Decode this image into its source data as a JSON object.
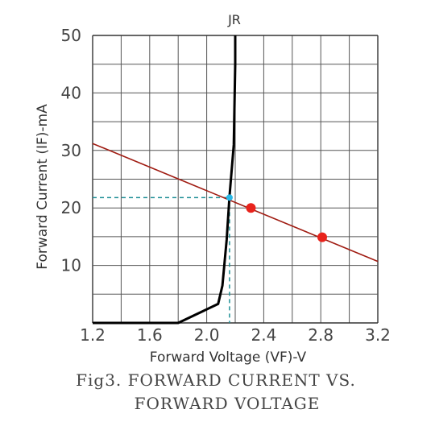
{
  "chart_data": {
    "type": "line",
    "title": "",
    "curve_label": "JR",
    "xlabel": "Forward Voltage (VF)-V",
    "ylabel": "Forward Current (IF)-mA",
    "xlim": [
      1.2,
      3.2
    ],
    "ylim": [
      0,
      50
    ],
    "x_ticks": [
      1.2,
      1.6,
      2.0,
      2.4,
      2.8,
      3.2
    ],
    "x_tick_labels": [
      "1.2",
      "1.6",
      "2.0",
      "2.4",
      "2.8",
      "3.2"
    ],
    "y_ticks": [
      10,
      20,
      30,
      40,
      50
    ],
    "y_tick_labels": [
      "10",
      "20",
      "30",
      "40",
      "50"
    ],
    "grid": true,
    "series": [
      {
        "color": "#000000",
        "points": [
          [
            1.2,
            0
          ],
          [
            1.8,
            0
          ],
          [
            2.08,
            3.3
          ],
          [
            2.11,
            6.5
          ],
          [
            2.14,
            14.5
          ],
          [
            2.16,
            22
          ],
          [
            2.19,
            31
          ],
          [
            2.2,
            45
          ],
          [
            2.2,
            50
          ]
        ]
      },
      {
        "color": "#a01c12",
        "points": [
          [
            1.2,
            31.2
          ],
          [
            3.2,
            10.7
          ]
        ]
      }
    ],
    "markers": [
      {
        "x": 2.31,
        "y": 20.0,
        "color": "#e8231c"
      },
      {
        "x": 2.81,
        "y": 14.9,
        "color": "#e8231c"
      },
      {
        "x": 2.16,
        "y": 21.8,
        "color": "#29b8e6"
      }
    ],
    "operating_point": {
      "x": 2.16,
      "y": 21.8,
      "color": "#1f8f96"
    },
    "caption_lines": [
      "Fig3. FORWARD CURRENT VS.",
      "FORWARD VOLTAGE"
    ]
  }
}
